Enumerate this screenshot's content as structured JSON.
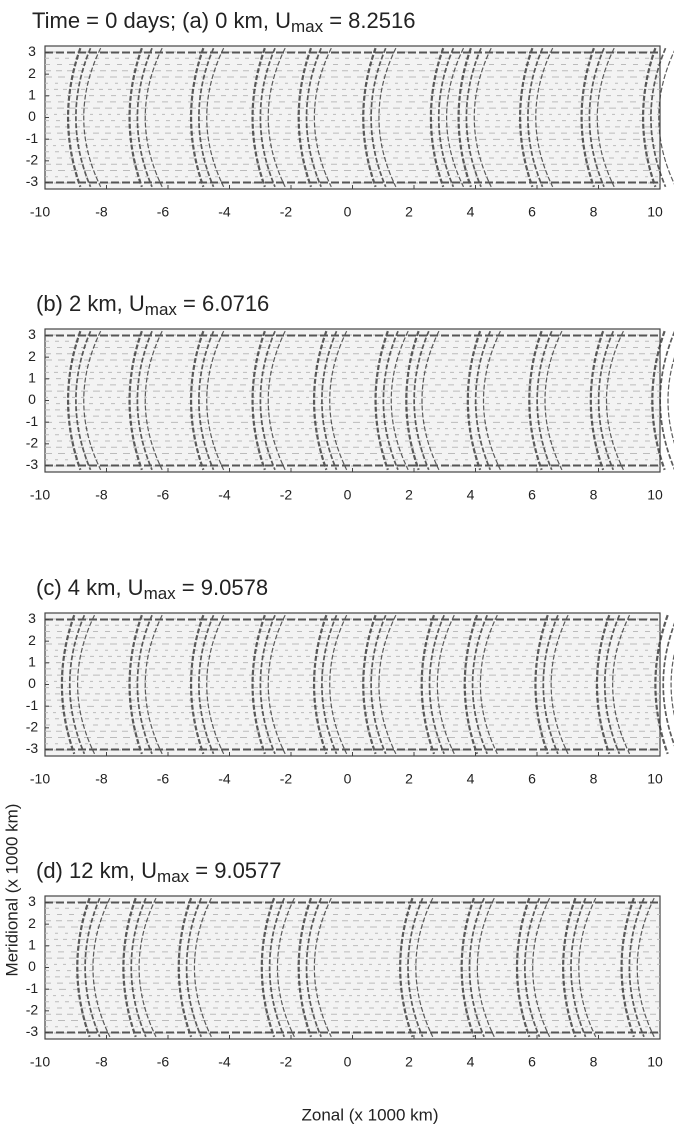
{
  "chart_data": [
    {
      "type": "contour",
      "title": "Time = 0 days; (a) 0 km, U",
      "title_sub": "max",
      "title_tail": " = 8.2516",
      "xlim": [
        -10,
        10
      ],
      "xticks": [
        -10,
        -8,
        -6,
        -4,
        -2,
        0,
        2,
        4,
        6,
        8,
        10
      ],
      "ylim": [
        -3.3,
        3.3
      ],
      "yticks": [
        3,
        2,
        1,
        0,
        -1,
        -2,
        -3
      ]
    },
    {
      "type": "contour",
      "title": "(b) 2 km, U",
      "title_sub": "max",
      "title_tail": " = 6.0716",
      "xlim": [
        -10,
        10
      ],
      "xticks": [
        -10,
        -8,
        -6,
        -4,
        -2,
        0,
        2,
        4,
        6,
        8,
        10
      ],
      "ylim": [
        -3.3,
        3.3
      ],
      "yticks": [
        3,
        2,
        1,
        0,
        -1,
        -2,
        -3
      ]
    },
    {
      "type": "contour",
      "title": "(c) 4 km, U",
      "title_sub": "max",
      "title_tail": " = 9.0578",
      "xlim": [
        -10,
        10
      ],
      "xticks": [
        -10,
        -8,
        -6,
        -4,
        -2,
        0,
        2,
        4,
        6,
        8,
        10
      ],
      "ylim": [
        -3.3,
        3.3
      ],
      "yticks": [
        3,
        2,
        1,
        0,
        -1,
        -2,
        -3
      ]
    },
    {
      "type": "contour",
      "title": "(d) 12 km, U",
      "title_sub": "max",
      "title_tail": " = 9.0577",
      "xlim": [
        -10,
        10
      ],
      "xticks": [
        -10,
        -8,
        -6,
        -4,
        -2,
        0,
        2,
        4,
        6,
        8,
        10
      ],
      "ylim": [
        -3.3,
        3.3
      ],
      "yticks": [
        3,
        2,
        1,
        0,
        -1,
        -2,
        -3
      ],
      "xlabel": "Zonal (x 1000 km)",
      "ylabel": "Meridional (x 1000 km)"
    }
  ]
}
